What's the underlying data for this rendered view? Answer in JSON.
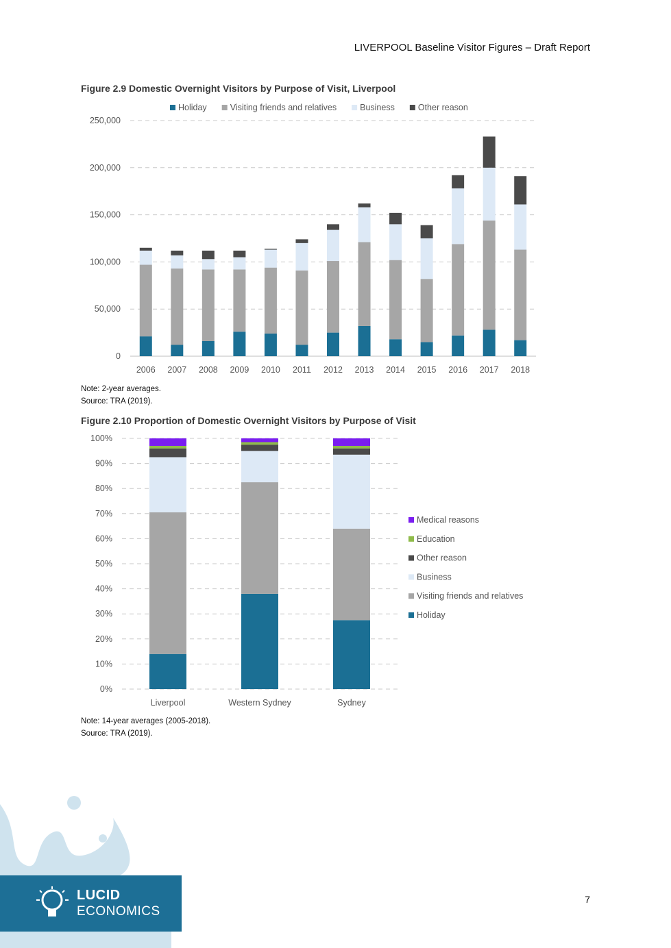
{
  "header": {
    "title": "LIVERPOOL Baseline Visitor Figures – Draft Report"
  },
  "colors": {
    "holiday": "#1b6f94",
    "vfr": "#a6a6a6",
    "business": "#dde9f6",
    "other": "#4a4a4a",
    "education": "#8fbb4a",
    "medical": "#7a1df0"
  },
  "figure1": {
    "note": "Note: 2-year averages.",
    "source": "Source: TRA (2019).",
    "chart_data": {
      "type": "bar",
      "stacked": true,
      "title": "Figure 2.9 Domestic Overnight Visitors by Purpose of Visit, Liverpool",
      "categories": [
        "2006",
        "2007",
        "2008",
        "2009",
        "2010",
        "2011",
        "2012",
        "2013",
        "2014",
        "2015",
        "2016",
        "2017",
        "2018"
      ],
      "series": [
        {
          "name": "Holiday",
          "color": "#1b6f94",
          "values": [
            21000,
            12000,
            16000,
            26000,
            24000,
            12000,
            25000,
            32000,
            18000,
            15000,
            22000,
            28000,
            17000
          ]
        },
        {
          "name": "Visiting friends and relatives",
          "color": "#a6a6a6",
          "values": [
            76000,
            81000,
            76000,
            66000,
            70000,
            79000,
            76000,
            89000,
            84000,
            67000,
            97000,
            116000,
            96000
          ]
        },
        {
          "name": "Business",
          "color": "#dde9f6",
          "values": [
            15000,
            14000,
            11000,
            13000,
            19000,
            29000,
            33000,
            37000,
            38000,
            43000,
            59000,
            56000,
            48000
          ]
        },
        {
          "name": "Other reason",
          "color": "#4a4a4a",
          "values": [
            3000,
            5000,
            9000,
            7000,
            1000,
            4000,
            6000,
            4000,
            12000,
            14000,
            14000,
            33000,
            30000
          ]
        }
      ],
      "ylim": [
        0,
        250000
      ],
      "yticks": [
        "0",
        "50,000",
        "100,000",
        "150,000",
        "200,000",
        "250,000"
      ],
      "xlabel": "",
      "ylabel": "",
      "legend": "top"
    }
  },
  "figure2": {
    "note": "Note: 14-year averages (2005-2018).",
    "source": "Source: TRA (2019).",
    "chart_data": {
      "type": "bar",
      "stacked": true,
      "percent": true,
      "title": "Figure 2.10 Proportion of Domestic Overnight Visitors by Purpose of Visit",
      "categories": [
        "Liverpool",
        "Western Sydney",
        "Sydney"
      ],
      "series": [
        {
          "name": "Holiday",
          "color": "#1b6f94",
          "values": [
            14,
            38,
            27.5
          ]
        },
        {
          "name": "Visiting friends and relatives",
          "color": "#a6a6a6",
          "values": [
            56.5,
            44.5,
            36.5
          ]
        },
        {
          "name": "Business",
          "color": "#dde9f6",
          "values": [
            22,
            12.5,
            29.5
          ]
        },
        {
          "name": "Other reason",
          "color": "#4a4a4a",
          "values": [
            3.5,
            2.5,
            2.5
          ]
        },
        {
          "name": "Education",
          "color": "#8fbb4a",
          "values": [
            1,
            1,
            1
          ]
        },
        {
          "name": "Medical reasons",
          "color": "#7a1df0",
          "values": [
            3,
            1.5,
            3
          ]
        }
      ],
      "ylim": [
        0,
        100
      ],
      "yticks": [
        "0%",
        "10%",
        "20%",
        "30%",
        "40%",
        "50%",
        "60%",
        "70%",
        "80%",
        "90%",
        "100%"
      ],
      "legend_order": [
        "Medical reasons",
        "Education",
        "Other reason",
        "Business",
        "Visiting friends and relatives",
        "Holiday"
      ],
      "legend": "right"
    }
  },
  "footer": {
    "page_number": "7",
    "logo_line1": "LUCID",
    "logo_line2": "ECONOMICS"
  }
}
